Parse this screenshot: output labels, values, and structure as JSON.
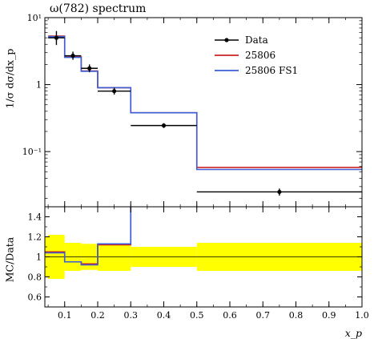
{
  "title": "ω(782) spectrum",
  "axes": {
    "main_ylabel": "1/σ dσ/dx_p",
    "ratio_ylabel": "MC/Data",
    "xlabel": "x_p"
  },
  "colors": {
    "data": "#000000",
    "mc1": "#cc2222",
    "mc2": "#3a5fd9",
    "band": "#ffff00",
    "band_inner": "#ffff00"
  },
  "chart_data": [
    {
      "type": "line",
      "panel": "main",
      "title": "ω(782) spectrum",
      "ylabel": "1/σ dσ/dx_p",
      "yscale": "log",
      "xlim": [
        0.04,
        1.0
      ],
      "ylim": [
        0.015,
        10
      ],
      "yticks": [
        0.1,
        1,
        10
      ],
      "ytick_labels": [
        "10⁻¹",
        "1",
        "10¹"
      ],
      "legend_position": "top-right",
      "bin_edges": [
        0.05,
        0.1,
        0.15,
        0.2,
        0.3,
        0.5,
        1.0
      ],
      "series": [
        {
          "name": "Data",
          "style": "points",
          "x": [
            0.075,
            0.125,
            0.175,
            0.25,
            0.4,
            0.75
          ],
          "values": [
            5.0,
            2.7,
            1.75,
            0.8,
            0.245,
            0.025
          ],
          "err_up": [
            1.3,
            0.4,
            0.25,
            0.1,
            0.02,
            0.003
          ],
          "err_down": [
            1.1,
            0.35,
            0.22,
            0.09,
            0.02,
            0.003
          ]
        },
        {
          "name": "25806",
          "style": "hist",
          "values": [
            5.3,
            2.6,
            1.6,
            0.9,
            0.38,
            0.058
          ]
        },
        {
          "name": "25806 FS1",
          "style": "hist",
          "values": [
            5.2,
            2.55,
            1.58,
            0.9,
            0.38,
            0.054
          ]
        }
      ]
    },
    {
      "type": "line",
      "panel": "ratio",
      "ylabel": "MC/Data",
      "xlabel": "x_p",
      "xlim": [
        0.04,
        1.0
      ],
      "ylim": [
        0.5,
        1.5
      ],
      "yticks": [
        0.6,
        0.8,
        1.0,
        1.2,
        1.4
      ],
      "ytick_labels": [
        "0.6",
        "0.8",
        "1",
        "1.2",
        "1.4"
      ],
      "xticks": [
        0.1,
        0.2,
        0.3,
        0.4,
        0.5,
        0.6,
        0.7,
        0.8,
        0.9,
        1.0
      ],
      "xtick_labels": [
        "0.1",
        "0.2",
        "0.3",
        "0.4",
        "0.5",
        "0.6",
        "0.7",
        "0.8",
        "0.9",
        "1.0"
      ],
      "bin_edges": [
        0.04,
        0.05,
        0.1,
        0.15,
        0.2,
        0.3,
        0.5,
        1.0
      ],
      "band_lo": [
        0.8,
        0.78,
        0.86,
        0.87,
        0.86,
        0.9,
        0.86
      ],
      "band_hi": [
        1.2,
        1.22,
        1.14,
        1.13,
        1.12,
        1.1,
        1.14
      ],
      "series": [
        {
          "name": "25806",
          "values": [
            1.05,
            1.05,
            0.95,
            0.93,
            1.12,
            1.55,
            2.3
          ]
        },
        {
          "name": "25806 FS1",
          "values": [
            1.04,
            1.04,
            0.95,
            0.92,
            1.13,
            1.55,
            2.2
          ]
        }
      ]
    }
  ]
}
